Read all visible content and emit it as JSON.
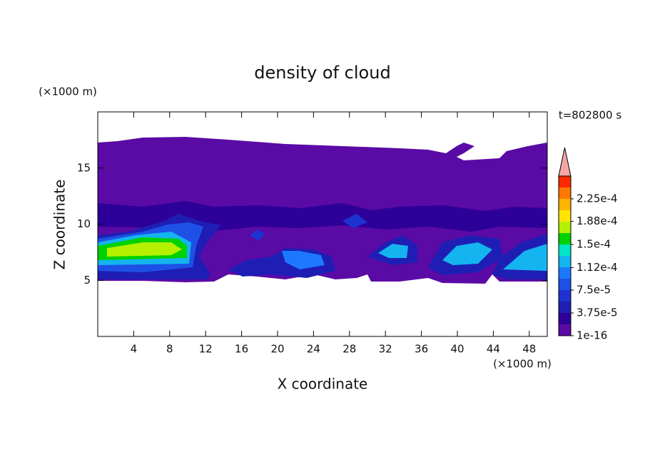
{
  "chart_data": {
    "type": "contour",
    "title": "density of cloud",
    "x_label": "X coordinate",
    "y_label": "Z coordinate",
    "x_unit": "(×1000 m)",
    "y_unit": "(×1000 m)",
    "annotation": "t=802800 s",
    "xlim": [
      0,
      50
    ],
    "ylim": [
      0,
      20
    ],
    "xticks": [
      4,
      8,
      12,
      16,
      20,
      24,
      28,
      32,
      36,
      40,
      44,
      48
    ],
    "yticks": [
      5,
      10,
      15
    ],
    "levels": [
      1e-16,
      1.875e-05,
      3.75e-05,
      5.625e-05,
      7.5e-05,
      9.375e-05,
      0.0001125,
      0.00013125,
      0.00015,
      0.00016875,
      0.0001875,
      0.00020625,
      0.000225,
      0.00024375
    ],
    "colors": [
      "#5a0aa5",
      "#2d0099",
      "#1e1eb4",
      "#1e32d2",
      "#1e50e6",
      "#1e78ff",
      "#14b4f0",
      "#00e6c8",
      "#00d200",
      "#b4f000",
      "#ffe600",
      "#ffb400",
      "#ff7800",
      "#ff2800"
    ],
    "extend_color": "#f4a6a6",
    "clim": [
      0,
      0.0002625
    ],
    "cticks": [
      {
        "value": 1e-16,
        "label": "1e-16"
      },
      {
        "value": 3.75e-05,
        "label": "3.75e-5"
      },
      {
        "value": 7.5e-05,
        "label": "7.5e-5"
      },
      {
        "value": 0.000112,
        "label": "1.12e-4"
      },
      {
        "value": 0.00015,
        "label": "1.5e-4"
      },
      {
        "value": 0.000188,
        "label": "1.88e-4"
      },
      {
        "value": 0.000225,
        "label": "2.25e-4"
      }
    ]
  }
}
